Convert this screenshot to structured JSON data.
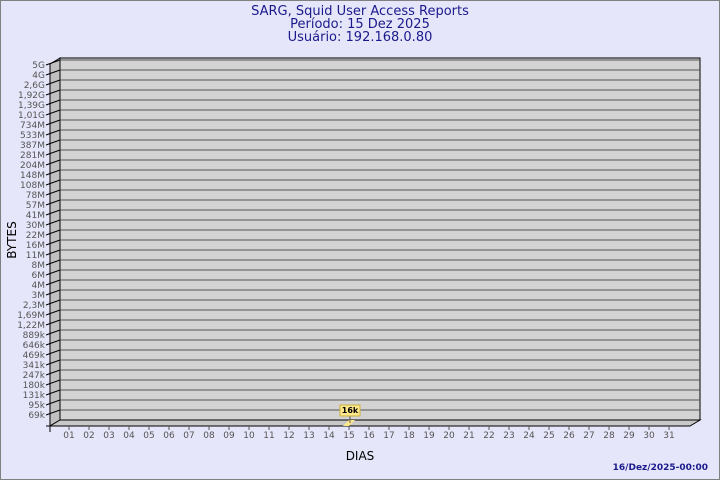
{
  "chart_data": {
    "type": "bar",
    "title": "SARG, Squid User Access Reports",
    "subtitle_1": "Período: 15 Dez 2025",
    "subtitle_2": "Usuário: 192.168.0.80",
    "xlabel": "DIAS",
    "ylabel": "BYTES",
    "y_scale": "log",
    "y_tick_labels": [
      "5G",
      "4G",
      "2,6G",
      "1,92G",
      "1,39G",
      "1,01G",
      "734M",
      "533M",
      "387M",
      "281M",
      "204M",
      "148M",
      "108M",
      "78M",
      "57M",
      "41M",
      "30M",
      "22M",
      "16M",
      "11M",
      "8M",
      "6M",
      "4M",
      "3M",
      "2,3M",
      "1,69M",
      "1,22M",
      "889k",
      "646k",
      "469k",
      "341k",
      "247k",
      "180k",
      "131k",
      "95k",
      "69k"
    ],
    "categories": [
      "01",
      "02",
      "03",
      "04",
      "05",
      "06",
      "07",
      "08",
      "09",
      "10",
      "11",
      "12",
      "13",
      "14",
      "15",
      "16",
      "17",
      "18",
      "19",
      "20",
      "21",
      "22",
      "23",
      "24",
      "25",
      "26",
      "27",
      "28",
      "29",
      "30",
      "31"
    ],
    "bars": [
      {
        "category": "15",
        "value": 16000,
        "label": "16k"
      }
    ],
    "grid": true,
    "colors": {
      "background": "#e6e6fa",
      "plot": "#d3d3d3",
      "bar": "#ffe88a",
      "title": "#1a1a8c"
    }
  },
  "footer": {
    "timestamp": "16/Dez/2025-00:00"
  }
}
